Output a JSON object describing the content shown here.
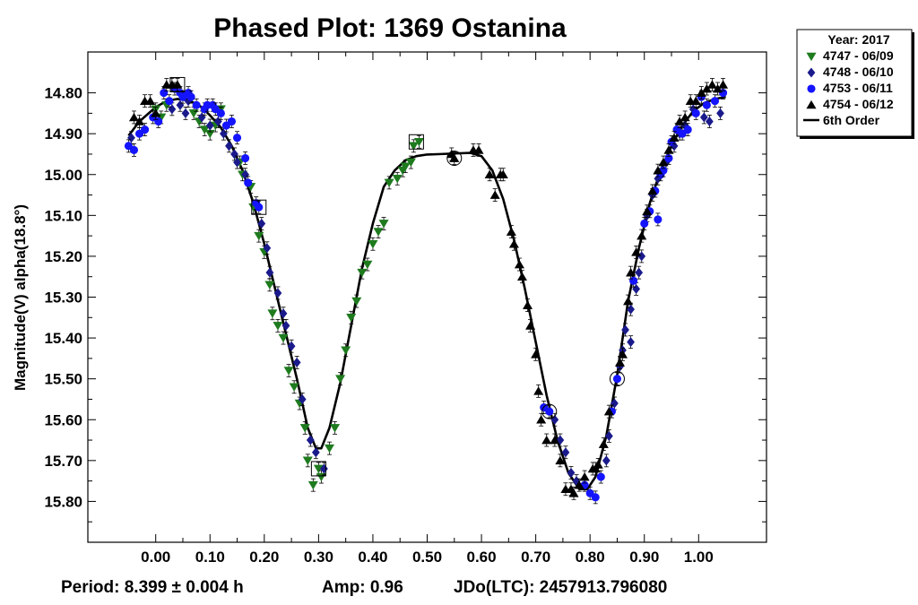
{
  "chart_data": {
    "type": "scatter",
    "title": "Phased Plot: 1369 Ostanina",
    "xlabel": "",
    "ylabel": "Magnitude(V) alpha(18.8°)",
    "xlim": [
      -0.125,
      1.125
    ],
    "ylim": [
      15.9,
      14.7
    ],
    "y_inverted": true,
    "grid": false,
    "legend_placement": "top-right outside",
    "x_ticks": [
      "0.00",
      "0.10",
      "0.20",
      "0.30",
      "0.40",
      "0.50",
      "0.60",
      "0.70",
      "0.80",
      "0.90",
      "1.00"
    ],
    "x_tick_values": [
      0,
      0.1,
      0.2,
      0.3,
      0.4,
      0.5,
      0.6,
      0.7,
      0.8,
      0.9,
      1.0
    ],
    "y_ticks": [
      "14.80",
      "14.90",
      "15.00",
      "15.10",
      "15.20",
      "15.30",
      "15.40",
      "15.50",
      "15.60",
      "15.70",
      "15.80"
    ],
    "y_tick_values": [
      14.8,
      14.9,
      15.0,
      15.1,
      15.2,
      15.3,
      15.4,
      15.5,
      15.6,
      15.7,
      15.8
    ],
    "legend_title": "Year: 2017",
    "series": [
      {
        "name": "4747 - 06/09",
        "marker": "triangle-down",
        "color": "#1e7b1e",
        "points": [
          [
            0.0,
            14.84
          ],
          [
            0.01,
            14.86
          ],
          [
            0.02,
            14.83
          ],
          [
            0.07,
            14.85
          ],
          [
            0.08,
            14.87
          ],
          [
            0.09,
            14.89
          ],
          [
            0.1,
            14.9
          ],
          [
            0.11,
            14.88
          ],
          [
            0.12,
            14.84
          ],
          [
            0.155,
            14.97
          ],
          [
            0.16,
            15.0
          ],
          [
            0.175,
            15.03
          ],
          [
            0.18,
            15.08
          ],
          [
            0.19,
            15.15
          ],
          [
            0.2,
            15.19
          ],
          [
            0.21,
            15.27
          ],
          [
            0.215,
            15.34
          ],
          [
            0.225,
            15.37
          ],
          [
            0.235,
            15.4
          ],
          [
            0.245,
            15.48
          ],
          [
            0.255,
            15.52
          ],
          [
            0.265,
            15.56
          ],
          [
            0.275,
            15.62
          ],
          [
            0.28,
            15.7
          ],
          [
            0.29,
            15.76
          ],
          [
            0.3,
            15.72
          ],
          [
            0.305,
            15.74
          ],
          [
            0.32,
            15.67
          ],
          [
            0.33,
            15.62
          ],
          [
            0.34,
            15.5
          ],
          [
            0.35,
            15.43
          ],
          [
            0.36,
            15.35
          ],
          [
            0.37,
            15.31
          ],
          [
            0.38,
            15.24
          ],
          [
            0.39,
            15.22
          ],
          [
            0.4,
            15.17
          ],
          [
            0.41,
            15.14
          ],
          [
            0.42,
            15.12
          ],
          [
            0.43,
            15.02
          ],
          [
            0.445,
            15.01
          ],
          [
            0.455,
            14.99
          ],
          [
            0.46,
            14.98
          ],
          [
            0.47,
            14.97
          ],
          [
            0.475,
            14.93
          ],
          [
            0.485,
            14.92
          ]
        ]
      },
      {
        "name": "4748 - 06/10",
        "marker": "diamond",
        "color": "#1a1a8c",
        "points": [
          [
            -0.045,
            14.91
          ],
          [
            0.03,
            14.84
          ],
          [
            0.045,
            14.83
          ],
          [
            0.055,
            14.85
          ],
          [
            0.06,
            14.82
          ],
          [
            0.085,
            14.86
          ],
          [
            0.1,
            14.88
          ],
          [
            0.115,
            14.87
          ],
          [
            0.125,
            14.9
          ],
          [
            0.135,
            14.93
          ],
          [
            0.145,
            14.95
          ],
          [
            0.15,
            14.97
          ],
          [
            0.165,
            15.0
          ],
          [
            0.195,
            15.12
          ],
          [
            0.205,
            15.18
          ],
          [
            0.21,
            15.24
          ],
          [
            0.225,
            15.29
          ],
          [
            0.235,
            15.34
          ],
          [
            0.24,
            15.37
          ],
          [
            0.25,
            15.42
          ],
          [
            0.26,
            15.46
          ],
          [
            0.27,
            15.55
          ],
          [
            0.285,
            15.65
          ],
          [
            0.295,
            15.68
          ],
          [
            0.31,
            15.72
          ],
          [
            0.735,
            15.6
          ],
          [
            0.745,
            15.65
          ],
          [
            0.755,
            15.68
          ],
          [
            0.765,
            15.73
          ],
          [
            0.775,
            15.75
          ],
          [
            0.83,
            15.7
          ],
          [
            0.835,
            15.64
          ],
          [
            0.845,
            15.56
          ],
          [
            0.855,
            15.47
          ],
          [
            0.86,
            15.43
          ],
          [
            0.865,
            15.38
          ],
          [
            0.875,
            15.33
          ],
          [
            0.885,
            15.28
          ],
          [
            0.89,
            15.24
          ],
          [
            0.895,
            15.2
          ],
          [
            0.905,
            15.1
          ],
          [
            0.915,
            15.05
          ],
          [
            0.925,
            15.01
          ],
          [
            0.94,
            14.97
          ],
          [
            0.955,
            14.93
          ],
          [
            0.965,
            14.9
          ],
          [
            0.975,
            14.88
          ],
          [
            0.99,
            14.84
          ],
          [
            1.01,
            14.86
          ],
          [
            1.02,
            14.87
          ],
          [
            1.04,
            14.85
          ],
          [
            0.875,
            15.41
          ]
        ]
      },
      {
        "name": "4753 - 06/11",
        "marker": "circle",
        "color": "#1414ff",
        "points": [
          [
            -0.05,
            14.93
          ],
          [
            -0.04,
            14.94
          ],
          [
            -0.03,
            14.9
          ],
          [
            -0.02,
            14.89
          ],
          [
            -0.005,
            14.86
          ],
          [
            0.005,
            14.87
          ],
          [
            0.015,
            14.8
          ],
          [
            0.025,
            14.82
          ],
          [
            0.035,
            14.79
          ],
          [
            0.045,
            14.8
          ],
          [
            0.05,
            14.81
          ],
          [
            0.06,
            14.8
          ],
          [
            0.065,
            14.81
          ],
          [
            0.075,
            14.83
          ],
          [
            0.09,
            14.84
          ],
          [
            0.095,
            14.83
          ],
          [
            0.105,
            14.83
          ],
          [
            0.11,
            14.84
          ],
          [
            0.12,
            14.85
          ],
          [
            0.13,
            14.88
          ],
          [
            0.14,
            14.87
          ],
          [
            0.15,
            14.91
          ],
          [
            0.165,
            14.96
          ],
          [
            0.17,
            15.02
          ],
          [
            0.185,
            15.07
          ],
          [
            0.19,
            15.08
          ],
          [
            0.715,
            15.57
          ],
          [
            0.725,
            15.58
          ],
          [
            0.79,
            15.76
          ],
          [
            0.8,
            15.78
          ],
          [
            0.81,
            15.79
          ],
          [
            0.82,
            15.74
          ],
          [
            0.84,
            15.58
          ],
          [
            0.85,
            15.5
          ],
          [
            0.88,
            15.26
          ],
          [
            0.9,
            15.12
          ],
          [
            0.91,
            15.09
          ],
          [
            0.92,
            15.04
          ],
          [
            0.93,
            15.0
          ],
          [
            0.945,
            14.96
          ],
          [
            0.95,
            14.92
          ],
          [
            0.96,
            14.89
          ],
          [
            0.97,
            14.9
          ],
          [
            0.98,
            14.89
          ],
          [
            0.995,
            14.85
          ],
          [
            1.005,
            14.81
          ],
          [
            1.015,
            14.83
          ],
          [
            1.03,
            14.82
          ],
          [
            1.045,
            14.8
          ],
          [
            0.925,
            15.11
          ],
          [
            0.935,
            14.99
          ]
        ]
      },
      {
        "name": "4754 - 06/12",
        "marker": "triangle-up",
        "color": "#000000",
        "points": [
          [
            -0.04,
            14.86
          ],
          [
            -0.03,
            14.87
          ],
          [
            -0.02,
            14.82
          ],
          [
            -0.01,
            14.82
          ],
          [
            0.0,
            14.85
          ],
          [
            0.02,
            14.78
          ],
          [
            0.03,
            14.78
          ],
          [
            0.04,
            14.78
          ],
          [
            0.545,
            14.95
          ],
          [
            0.55,
            14.96
          ],
          [
            0.585,
            14.94
          ],
          [
            0.595,
            14.94
          ],
          [
            0.615,
            15.0
          ],
          [
            0.625,
            15.05
          ],
          [
            0.635,
            15.0
          ],
          [
            0.64,
            15.0
          ],
          [
            0.655,
            15.14
          ],
          [
            0.66,
            15.17
          ],
          [
            0.67,
            15.22
          ],
          [
            0.675,
            15.25
          ],
          [
            0.685,
            15.32
          ],
          [
            0.69,
            15.37
          ],
          [
            0.7,
            15.44
          ],
          [
            0.705,
            15.53
          ],
          [
            0.71,
            15.6
          ],
          [
            0.72,
            15.65
          ],
          [
            0.735,
            15.65
          ],
          [
            0.745,
            15.7
          ],
          [
            0.755,
            15.77
          ],
          [
            0.765,
            15.77
          ],
          [
            0.77,
            15.78
          ],
          [
            0.78,
            15.76
          ],
          [
            0.79,
            15.74
          ],
          [
            0.805,
            15.72
          ],
          [
            0.81,
            15.72
          ],
          [
            0.815,
            15.71
          ],
          [
            0.825,
            15.66
          ],
          [
            0.835,
            15.58
          ],
          [
            0.855,
            15.46
          ],
          [
            0.86,
            15.44
          ],
          [
            0.87,
            15.31
          ],
          [
            0.875,
            15.24
          ],
          [
            0.885,
            15.19
          ],
          [
            0.895,
            15.15
          ],
          [
            0.905,
            15.09
          ],
          [
            0.915,
            15.04
          ],
          [
            0.925,
            14.99
          ],
          [
            0.935,
            14.97
          ],
          [
            0.945,
            14.94
          ],
          [
            0.955,
            14.91
          ],
          [
            0.965,
            14.87
          ],
          [
            0.975,
            14.86
          ],
          [
            0.985,
            14.82
          ],
          [
            0.995,
            14.82
          ],
          [
            1.005,
            14.8
          ],
          [
            1.015,
            14.79
          ],
          [
            1.025,
            14.78
          ],
          [
            1.035,
            14.79
          ],
          [
            1.045,
            14.78
          ]
        ]
      }
    ],
    "fit_name": "6th Order",
    "fit_curve": [
      [
        -0.05,
        14.905
      ],
      [
        -0.03,
        14.87
      ],
      [
        0.0,
        14.835
      ],
      [
        0.02,
        14.82
      ],
      [
        0.04,
        14.815
      ],
      [
        0.06,
        14.818
      ],
      [
        0.08,
        14.83
      ],
      [
        0.1,
        14.855
      ],
      [
        0.12,
        14.885
      ],
      [
        0.14,
        14.93
      ],
      [
        0.16,
        14.99
      ],
      [
        0.18,
        15.07
      ],
      [
        0.2,
        15.17
      ],
      [
        0.22,
        15.28
      ],
      [
        0.24,
        15.39
      ],
      [
        0.26,
        15.5
      ],
      [
        0.28,
        15.62
      ],
      [
        0.295,
        15.67
      ],
      [
        0.305,
        15.67
      ],
      [
        0.32,
        15.62
      ],
      [
        0.34,
        15.51
      ],
      [
        0.36,
        15.37
      ],
      [
        0.38,
        15.23
      ],
      [
        0.4,
        15.12
      ],
      [
        0.42,
        15.03
      ],
      [
        0.44,
        14.99
      ],
      [
        0.46,
        14.965
      ],
      [
        0.48,
        14.955
      ],
      [
        0.5,
        14.951
      ],
      [
        0.52,
        14.95
      ],
      [
        0.54,
        14.949
      ],
      [
        0.56,
        14.948
      ],
      [
        0.58,
        14.947
      ],
      [
        0.6,
        14.955
      ],
      [
        0.62,
        14.99
      ],
      [
        0.64,
        15.06
      ],
      [
        0.66,
        15.16
      ],
      [
        0.68,
        15.28
      ],
      [
        0.7,
        15.41
      ],
      [
        0.72,
        15.54
      ],
      [
        0.74,
        15.65
      ],
      [
        0.76,
        15.73
      ],
      [
        0.78,
        15.77
      ],
      [
        0.795,
        15.77
      ],
      [
        0.81,
        15.74
      ],
      [
        0.83,
        15.64
      ],
      [
        0.85,
        15.49
      ],
      [
        0.87,
        15.31
      ],
      [
        0.89,
        15.18
      ],
      [
        0.91,
        15.07
      ],
      [
        0.93,
        14.99
      ],
      [
        0.95,
        14.93
      ],
      [
        0.97,
        14.88
      ],
      [
        0.99,
        14.845
      ],
      [
        1.01,
        14.825
      ],
      [
        1.03,
        14.815
      ],
      [
        1.05,
        14.81
      ]
    ],
    "highlighted_points": [
      {
        "marker": "square",
        "x": 0.04,
        "y": 14.78
      },
      {
        "marker": "square",
        "x": 0.19,
        "y": 15.08
      },
      {
        "marker": "square",
        "x": 0.3,
        "y": 15.72
      },
      {
        "marker": "square",
        "x": 0.48,
        "y": 14.92
      },
      {
        "marker": "circle",
        "x": 0.55,
        "y": 14.96
      },
      {
        "marker": "circle",
        "x": 0.725,
        "y": 15.58
      },
      {
        "marker": "circle",
        "x": 0.85,
        "y": 15.5
      }
    ]
  },
  "footer": {
    "period": "Period: 8.399 ± 0.004 h",
    "amp": "Amp: 0.96",
    "jdo": "JDo(LTC): 2457913.796080"
  }
}
